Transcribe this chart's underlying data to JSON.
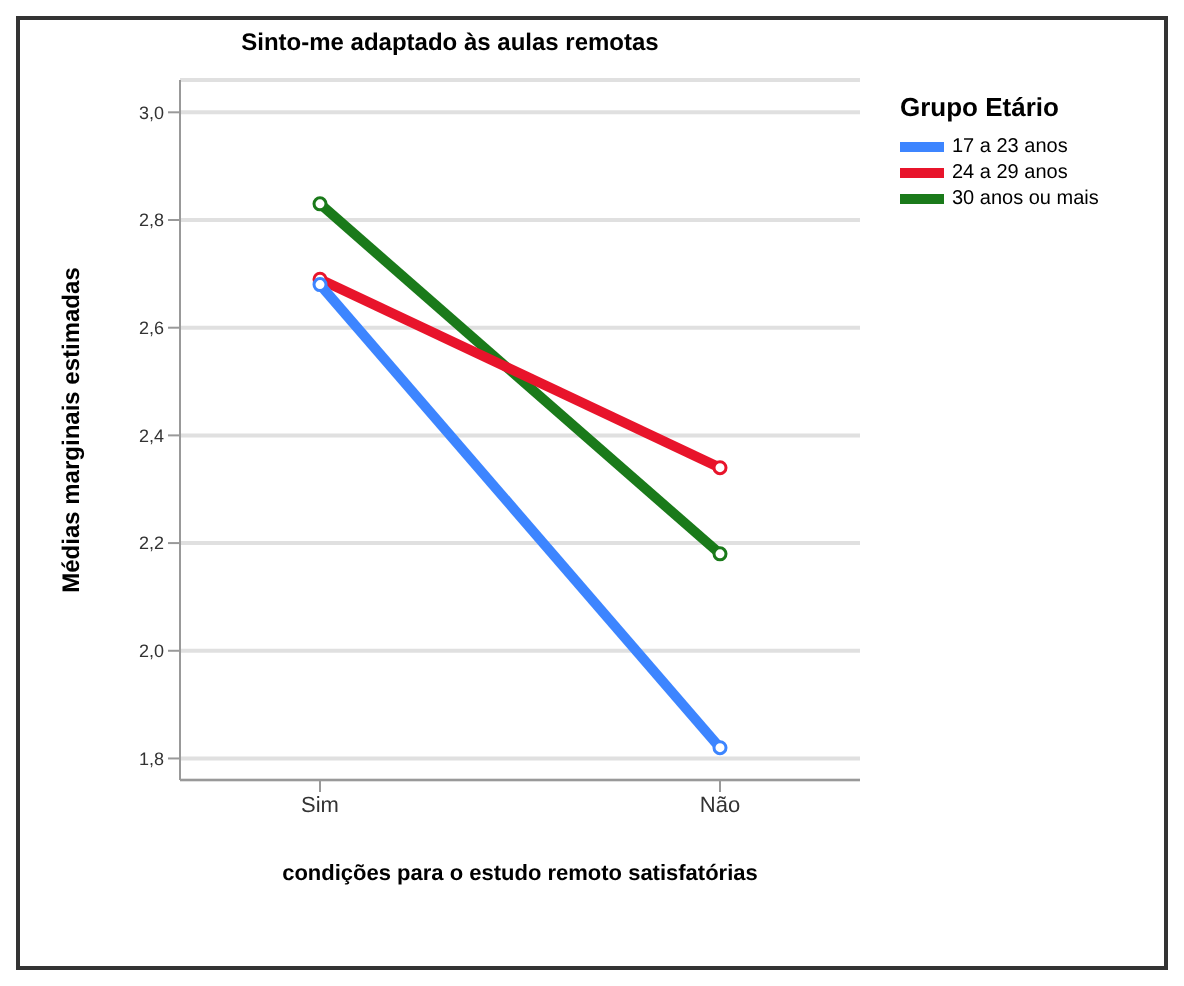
{
  "chart_data": {
    "type": "line",
    "title": "Sinto-me adaptado às aulas remotas",
    "xlabel": "condições para o estudo remoto satisfatórias",
    "ylabel": "Médias marginais estimadas",
    "legend_title": "Grupo Etário",
    "categories": [
      "Sim",
      "Não"
    ],
    "series": [
      {
        "name": "17 a 23 anos",
        "color": "#3d85ff",
        "values": [
          2.68,
          1.82
        ]
      },
      {
        "name": "24 a 29 anos",
        "color": "#e8142b",
        "values": [
          2.69,
          2.34
        ]
      },
      {
        "name": "30 anos ou mais",
        "color": "#1a7a1a",
        "values": [
          2.83,
          2.18
        ]
      }
    ],
    "ylim": [
      1.76,
      3.06
    ],
    "yticks": [
      {
        "value": 1.8,
        "label": "1,8"
      },
      {
        "value": 2.0,
        "label": "2,0"
      },
      {
        "value": 2.2,
        "label": "2,2"
      },
      {
        "value": 2.4,
        "label": "2,4"
      },
      {
        "value": 2.6,
        "label": "2,6"
      },
      {
        "value": 2.8,
        "label": "2,8"
      },
      {
        "value": 3.0,
        "label": "3,0"
      }
    ],
    "grid": "y",
    "legend": "top right",
    "marker": "circle",
    "line_style": "solid"
  }
}
